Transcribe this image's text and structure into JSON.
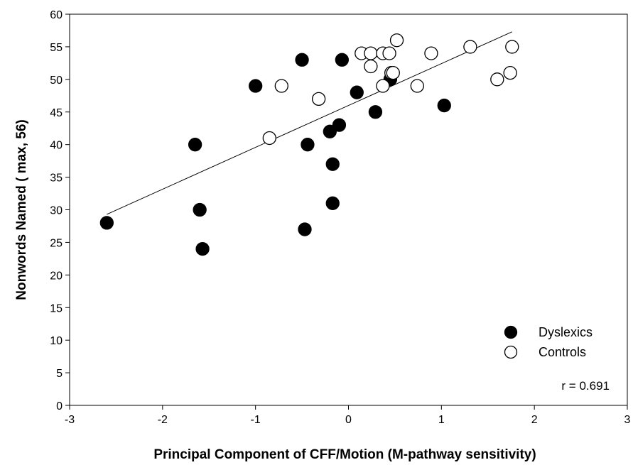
{
  "chart_data": {
    "type": "scatter",
    "title": "",
    "xlabel": "Principal Component of CFF/Motion (M-pathway sensitivity)",
    "ylabel": "Nonwords Named ( max, 56)",
    "xlim": [
      -3,
      3
    ],
    "ylim": [
      0,
      60
    ],
    "xticks": [
      -3,
      -2,
      -1,
      0,
      1,
      2,
      3
    ],
    "yticks": [
      0,
      5,
      10,
      15,
      20,
      25,
      30,
      35,
      40,
      45,
      50,
      55,
      60
    ],
    "grid": false,
    "legend_position": "bottom-right",
    "series": [
      {
        "name": "Dyslexics",
        "marker": "filled-circle",
        "color": "#000000",
        "points": [
          {
            "x": -2.6,
            "y": 28
          },
          {
            "x": -1.65,
            "y": 40
          },
          {
            "x": -1.6,
            "y": 30
          },
          {
            "x": -1.57,
            "y": 24
          },
          {
            "x": -1.0,
            "y": 49
          },
          {
            "x": -0.5,
            "y": 53
          },
          {
            "x": -0.47,
            "y": 27
          },
          {
            "x": -0.44,
            "y": 40
          },
          {
            "x": -0.2,
            "y": 42
          },
          {
            "x": -0.17,
            "y": 37
          },
          {
            "x": -0.17,
            "y": 31
          },
          {
            "x": -0.1,
            "y": 43
          },
          {
            "x": -0.07,
            "y": 53
          },
          {
            "x": 0.09,
            "y": 48
          },
          {
            "x": 0.29,
            "y": 45
          },
          {
            "x": 0.45,
            "y": 50
          },
          {
            "x": 1.03,
            "y": 46
          }
        ]
      },
      {
        "name": "Controls",
        "marker": "open-circle",
        "color": "#000000",
        "points": [
          {
            "x": -0.85,
            "y": 41
          },
          {
            "x": -0.72,
            "y": 49
          },
          {
            "x": -0.32,
            "y": 47
          },
          {
            "x": 0.14,
            "y": 54
          },
          {
            "x": 0.24,
            "y": 54
          },
          {
            "x": 0.24,
            "y": 52
          },
          {
            "x": 0.37,
            "y": 54
          },
          {
            "x": 0.44,
            "y": 54
          },
          {
            "x": 0.46,
            "y": 51
          },
          {
            "x": 0.48,
            "y": 51
          },
          {
            "x": 0.37,
            "y": 49
          },
          {
            "x": 0.52,
            "y": 56
          },
          {
            "x": 0.74,
            "y": 49
          },
          {
            "x": 0.89,
            "y": 54
          },
          {
            "x": 1.31,
            "y": 55
          },
          {
            "x": 1.6,
            "y": 50
          },
          {
            "x": 1.74,
            "y": 51
          },
          {
            "x": 1.76,
            "y": 55
          }
        ]
      }
    ],
    "regression_line": {
      "x": [
        -2.6,
        1.76
      ],
      "y": [
        29.3,
        57.3
      ]
    },
    "annotation": "r = 0.691"
  }
}
